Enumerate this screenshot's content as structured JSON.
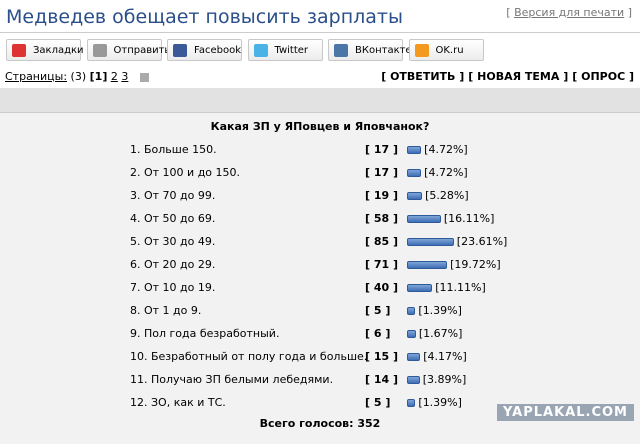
{
  "header": {
    "title": "Медведев обещает повысить зарплаты",
    "print_link": "Версия для печати"
  },
  "share": [
    "Закладки",
    "Отправить",
    "Facebook",
    "Twitter",
    "ВКонтакте",
    "OK.ru"
  ],
  "nav": {
    "pages_label": "Страницы:",
    "pages_count": "(3)",
    "current": "1",
    "pages": [
      "2",
      "3"
    ],
    "actions": [
      "ОТВЕТИТЬ",
      "НОВАЯ ТЕМА",
      "ОПРОС"
    ]
  },
  "poll": {
    "question": "Какая ЗП у ЯПовцев и Яповчанок?",
    "options": [
      {
        "label": "1. Больше 150.",
        "votes": 17,
        "percent": "4.72%"
      },
      {
        "label": "2. От 100 и до 150.",
        "votes": 17,
        "percent": "4.72%"
      },
      {
        "label": "3. От 70 до 99.",
        "votes": 19,
        "percent": "5.28%"
      },
      {
        "label": "4. От 50 до 69.",
        "votes": 58,
        "percent": "16.11%"
      },
      {
        "label": "5. От 30 до 49.",
        "votes": 85,
        "percent": "23.61%"
      },
      {
        "label": "6. От 20 до 29.",
        "votes": 71,
        "percent": "19.72%"
      },
      {
        "label": "7. От 10 до 19.",
        "votes": 40,
        "percent": "11.11%"
      },
      {
        "label": "8. От 1 до 9.",
        "votes": 5,
        "percent": "1.39%"
      },
      {
        "label": "9. Пол года безработный.",
        "votes": 6,
        "percent": "1.67%"
      },
      {
        "label": "10. Безработный от полу года и больше.",
        "votes": 15,
        "percent": "4.17%"
      },
      {
        "label": "11. Получаю ЗП белыми лебедями.",
        "votes": 14,
        "percent": "3.89%"
      },
      {
        "label": "12. ЗО, как и ТС.",
        "votes": 5,
        "percent": "1.39%"
      }
    ],
    "total_label": "Всего голосов:",
    "total": 352
  },
  "watermark": "YAPLAKAL.COM"
}
